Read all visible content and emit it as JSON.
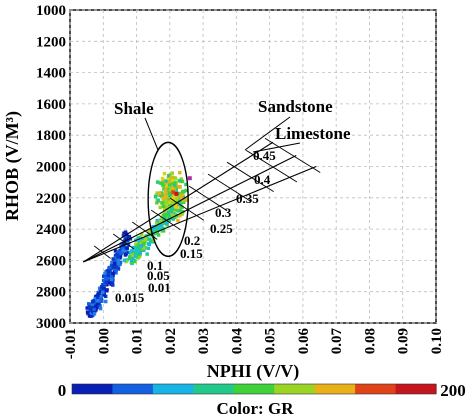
{
  "chart_data": {
    "type": "scatter",
    "xlabel": "NPHI (V/V)",
    "ylabel": "RHOB (V/M³)",
    "xlim": [
      -0.01,
      0.1
    ],
    "ylim": [
      3000,
      1000
    ],
    "y_inverted": true,
    "grid": true,
    "x_ticks": [
      "-0.01",
      "0.00",
      "0.01",
      "0.02",
      "0.03",
      "0.04",
      "0.05",
      "0.06",
      "0.07",
      "0.08",
      "0.09",
      "0.10"
    ],
    "y_ticks": [
      "1000",
      "1200",
      "1400",
      "1600",
      "1800",
      "2000",
      "2200",
      "2400",
      "2600",
      "2800",
      "3000"
    ],
    "annotations": {
      "shale": "Shale",
      "sandstone": "Sandstone",
      "limestone": "Limestone"
    },
    "porosity_labels": [
      "0.45",
      "0.4",
      "0.35",
      "0.3",
      "0.25",
      "0.2",
      "0.15",
      "0.1",
      "0.05",
      "0.01",
      "0.015"
    ],
    "colorbar": {
      "label": "Color: GR",
      "min": "0",
      "max": "200",
      "colors": [
        "#0a1fb5",
        "#1460e0",
        "#19b3e6",
        "#22c98a",
        "#3fd13a",
        "#9bd424",
        "#e8b019",
        "#e0421a",
        "#c4161c"
      ]
    },
    "series": [
      {
        "cluster": "low",
        "x_range": [
          -0.004,
          0.008
        ],
        "y_range": [
          2450,
          2960
        ],
        "gr": "blue"
      },
      {
        "cluster": "mid",
        "x_range": [
          0.008,
          0.024
        ],
        "y_range": [
          2200,
          2600
        ],
        "gr": "green"
      },
      {
        "cluster": "shale",
        "x_range": [
          0.014,
          0.027
        ],
        "y_range": [
          1980,
          2400
        ],
        "gr": "yellow-green"
      }
    ]
  }
}
